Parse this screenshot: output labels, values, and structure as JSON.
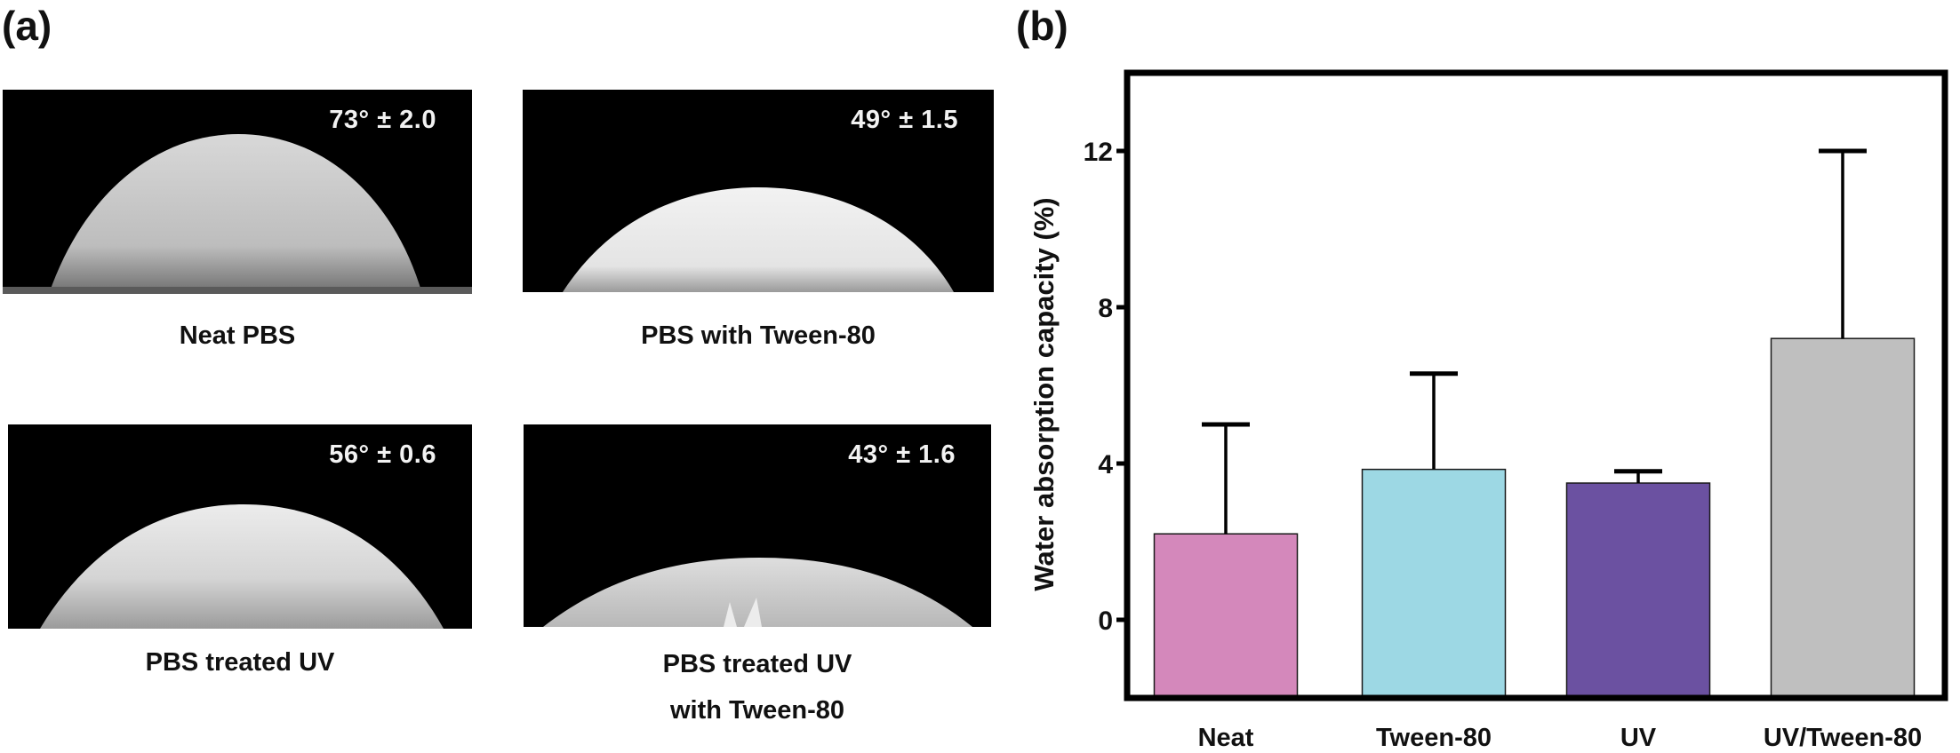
{
  "panel_a": {
    "label": "(a)",
    "images": [
      {
        "angle": "73° ± 2.0",
        "caption_lines": [
          "Neat PBS"
        ]
      },
      {
        "angle": "49° ± 1.5",
        "caption_lines": [
          "PBS with Tween-80"
        ]
      },
      {
        "angle": "56° ± 0.6",
        "caption_lines": [
          "PBS treated UV"
        ]
      },
      {
        "angle": "43° ± 1.6",
        "caption_lines": [
          "PBS treated UV",
          "with Tween-80"
        ]
      }
    ]
  },
  "panel_b": {
    "label": "(b)"
  },
  "chart_data": {
    "type": "bar",
    "title": "",
    "xlabel": "",
    "ylabel": "Water absorption capacity (%)",
    "categories": [
      "Neat",
      "Tween-80",
      "UV",
      "UV/Tween-80"
    ],
    "values": [
      2.2,
      3.85,
      3.5,
      7.2
    ],
    "error_upper": [
      2.8,
      2.45,
      0.3,
      4.8
    ],
    "colors": [
      "#d488bb",
      "#9dd8e4",
      "#6b51a1",
      "#bfbfbf"
    ],
    "ylim": [
      -2,
      14
    ],
    "yticks": [
      0,
      4,
      8,
      12
    ],
    "ytick_labels": [
      "0",
      "4",
      "8",
      "12"
    ],
    "grid": false,
    "legend": "none"
  }
}
